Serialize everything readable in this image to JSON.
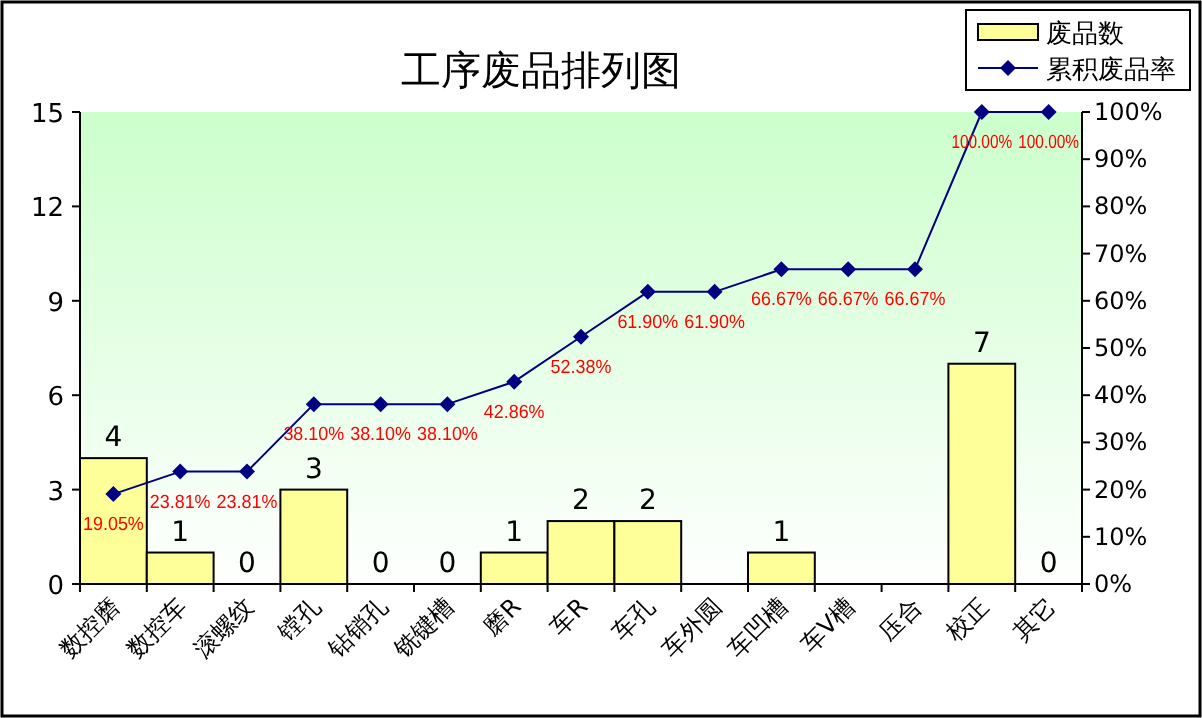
{
  "chart_data": {
    "type": "bar",
    "title": "工序废品排列图",
    "categories": [
      "数控磨",
      "数控车",
      "滚螺纹",
      "镗孔",
      "钻销孔",
      "铣键槽",
      "磨R",
      "车R",
      "车孔",
      "车外圆",
      "车凹槽",
      "车V槽",
      "压合",
      "校正",
      "其它"
    ],
    "series": [
      {
        "name": "废品数",
        "color": "#ffff99",
        "values": [
          4,
          1,
          0,
          3,
          0,
          0,
          1,
          2,
          2,
          0,
          1,
          0,
          0,
          7,
          0
        ],
        "value_labels": [
          "4",
          "1",
          "0",
          "3",
          "0",
          "0",
          "1",
          "2",
          "2",
          null,
          "1",
          null,
          null,
          "7",
          "0"
        ]
      },
      {
        "name": "累积废品率",
        "type": "line",
        "axis": "y2",
        "color": "#000080",
        "marker": "diamond",
        "values": [
          19.05,
          23.81,
          23.81,
          38.1,
          38.1,
          38.1,
          42.86,
          52.38,
          61.9,
          61.9,
          66.67,
          66.67,
          66.67,
          100.0,
          100.0
        ],
        "value_labels": [
          "19.05%",
          "23.81%",
          "23.81%",
          "38.10%",
          "38.10%",
          "38.10%",
          "42.86%",
          "52.38%",
          "61.90%",
          "61.90%",
          "66.67%",
          "66.67%",
          "66.67%",
          "100.00%",
          "100.00%"
        ]
      }
    ],
    "ylim": [
      0,
      15
    ],
    "yticks": [
      0,
      3,
      6,
      9,
      12,
      15
    ],
    "y2lim": [
      0,
      100
    ],
    "y2ticks": [
      {
        "value": 0,
        "label": "0%"
      },
      {
        "value": 10,
        "label": "10%"
      },
      {
        "value": 20,
        "label": "20%"
      },
      {
        "value": 30,
        "label": "30%"
      },
      {
        "value": 40,
        "label": "40%"
      },
      {
        "value": 50,
        "label": "50%"
      },
      {
        "value": 60,
        "label": "60%"
      },
      {
        "value": 70,
        "label": "70%"
      },
      {
        "value": 80,
        "label": "80%"
      },
      {
        "value": 90,
        "label": "90%"
      },
      {
        "value": 100,
        "label": "100%"
      }
    ],
    "legend": "top right"
  }
}
